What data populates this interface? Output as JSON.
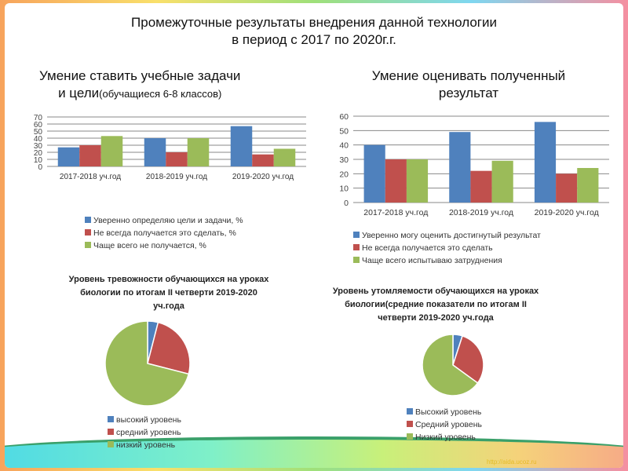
{
  "slide": {
    "title_line1": "Промежуточные результаты внедрения данной технологии",
    "title_line2": "в период с 2017 по 2020г.г.",
    "left_heading_line1": "Умение ставить учебные задачи",
    "left_heading_line2": "и цели",
    "left_heading_note": "(обучащиеся 6-8 классов)",
    "right_heading_line1": "Умение оценивать полученный",
    "right_heading_line2": "результат",
    "watermark": "http://aida.ucoz.ru"
  },
  "colors": {
    "blue": "#4f81bd",
    "red": "#c0504d",
    "green": "#9bbb59"
  },
  "chart_data": [
    {
      "type": "bar",
      "title": "Умение ставить учебные задачи и цели (обучащиеся 6-8 классов)",
      "categories": [
        "2017-2018 уч.год",
        "2018-2019 уч.год",
        "2019-2020 уч.год"
      ],
      "ylim": [
        0,
        70
      ],
      "yticks": [
        "0",
        "10",
        "20",
        "30",
        "40",
        "50",
        "60",
        "70"
      ],
      "legend_position": "bottom",
      "series": [
        {
          "name": "Уверенно определяю цели и задачи, %",
          "values": [
            27,
            40,
            57
          ]
        },
        {
          "name": "Не всегда получается это сделать, %",
          "values": [
            30,
            20,
            17
          ]
        },
        {
          "name": "Чаще всего не получается, %",
          "values": [
            43,
            40,
            25
          ]
        }
      ]
    },
    {
      "type": "bar",
      "title": "Умение оценивать полученный результат",
      "categories": [
        "2017-2018 уч.год",
        "2018-2019 уч.год",
        "2019-2020 уч.год"
      ],
      "ylim": [
        0,
        60
      ],
      "yticks": [
        "0",
        "10",
        "20",
        "30",
        "40",
        "50",
        "60"
      ],
      "legend_position": "bottom",
      "series": [
        {
          "name": "Уверенно могу оценить достигнутый результат",
          "values": [
            40,
            49,
            56
          ]
        },
        {
          "name": "Не всегда получается это сделать",
          "values": [
            30,
            22,
            20
          ]
        },
        {
          "name": "Чаще всего испытываю затруднения",
          "values": [
            30,
            29,
            24
          ]
        }
      ]
    },
    {
      "type": "pie",
      "title_lines": [
        "Уровень тревожности обучающихся на уроках",
        "биологии по итогам II четверти 2019-2020",
        "уч.года"
      ],
      "labels": [
        "высокий уровень",
        "средний уровень",
        "низкий уровень"
      ],
      "values": [
        4,
        25,
        71
      ]
    },
    {
      "type": "pie",
      "title_lines": [
        "Уровень утомляемости обучающихся на уроках",
        "биологии(средние показатели по итогам II",
        "четверти 2019-2020 уч.года"
      ],
      "labels": [
        "Высокий уровень",
        "Средний уровень",
        "Низкий уровень"
      ],
      "values": [
        5,
        30,
        65
      ]
    }
  ]
}
